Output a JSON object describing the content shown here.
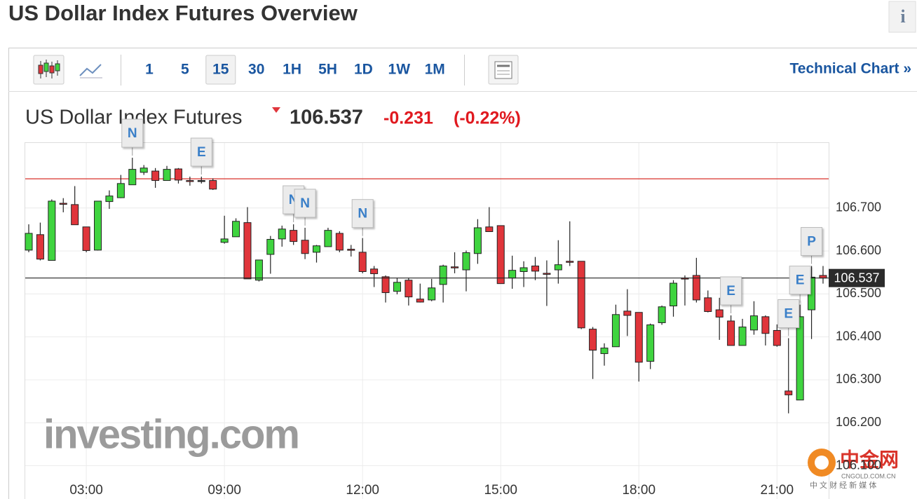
{
  "header": {
    "title": "US Dollar Index Futures Overview",
    "info": "i",
    "toolbar": {
      "intervals": [
        "1",
        "5",
        "15",
        "30",
        "1H",
        "5H",
        "1D",
        "1W",
        "1M"
      ],
      "selected": "15",
      "link": "Technical Chart »"
    },
    "instrument": "US Dollar Index Futures",
    "price": "106.537",
    "change": "-0.231",
    "change_pct": "(-0.22%)"
  },
  "watermarks": {
    "investing": "investing.com",
    "cngold_name": "中金网",
    "cngold_url": "CNGOLD.COM.CN",
    "cngold_tagline": "中 文 财 经 新 媒 体"
  },
  "chart_data": {
    "type": "candlestick",
    "categories": [
      null,
      null,
      null,
      null,
      null,
      "03:00",
      null,
      null,
      null,
      null,
      null,
      null,
      null,
      null,
      null,
      null,
      null,
      "09:00",
      null,
      null,
      null,
      null,
      null,
      null,
      null,
      null,
      null,
      null,
      null,
      "12:00",
      null,
      null,
      null,
      null,
      null,
      null,
      null,
      null,
      null,
      null,
      null,
      "15:00",
      null,
      null,
      null,
      null,
      null,
      null,
      null,
      null,
      null,
      null,
      null,
      "18:00",
      null,
      null,
      null,
      null,
      null,
      null,
      null,
      null,
      null,
      null,
      null,
      "21:00",
      null,
      null,
      null,
      null
    ],
    "open": [
      106.602,
      106.638,
      106.578,
      106.711,
      106.708,
      106.656,
      106.602,
      106.715,
      106.724,
      106.754,
      106.783,
      106.786,
      106.764,
      106.791,
      106.764,
      106.764,
      106.764,
      106.62,
      106.633,
      106.666,
      106.532,
      106.592,
      106.628,
      106.648,
      106.625,
      106.597,
      106.61,
      106.641,
      106.604,
      106.597,
      106.558,
      106.54,
      106.506,
      106.532,
      106.488,
      106.486,
      106.522,
      106.563,
      106.556,
      106.594,
      106.656,
      106.659,
      106.537,
      106.552,
      106.565,
      106.548,
      106.556,
      106.576,
      106.576,
      106.418,
      106.361,
      106.377,
      106.46,
      106.457,
      106.343,
      106.433,
      106.472,
      106.537,
      106.543,
      106.491,
      106.463,
      106.437,
      106.38,
      106.416,
      106.447,
      106.415,
      106.274,
      106.253,
      106.463,
      106.543
    ],
    "high": [
      106.662,
      106.666,
      106.72,
      106.723,
      106.751,
      106.656,
      106.716,
      106.741,
      106.777,
      106.817,
      106.8,
      106.793,
      106.798,
      106.793,
      106.773,
      106.773,
      106.769,
      106.682,
      106.676,
      106.702,
      106.579,
      106.635,
      106.659,
      106.662,
      106.654,
      106.614,
      106.654,
      106.646,
      106.614,
      106.63,
      106.565,
      106.543,
      106.537,
      106.537,
      106.524,
      106.535,
      106.568,
      106.597,
      106.601,
      106.674,
      106.702,
      106.659,
      106.589,
      106.576,
      106.586,
      106.578,
      106.625,
      106.669,
      106.576,
      106.423,
      106.385,
      106.475,
      106.511,
      106.457,
      106.431,
      106.473,
      106.532,
      106.543,
      106.584,
      106.508,
      106.491,
      106.45,
      106.442,
      106.483,
      106.45,
      106.429,
      106.397,
      106.475,
      106.565,
      106.565
    ],
    "low": [
      106.597,
      106.578,
      106.578,
      106.69,
      106.661,
      106.597,
      106.601,
      106.698,
      106.723,
      106.754,
      106.777,
      106.747,
      106.764,
      106.757,
      106.752,
      106.757,
      106.742,
      106.617,
      106.633,
      106.535,
      106.529,
      106.547,
      106.61,
      106.614,
      106.581,
      106.573,
      106.61,
      106.597,
      106.587,
      106.548,
      106.516,
      106.48,
      106.499,
      106.473,
      106.48,
      106.483,
      106.48,
      106.548,
      106.506,
      106.57,
      106.645,
      106.524,
      106.512,
      106.516,
      106.532,
      106.472,
      106.524,
      106.565,
      106.418,
      106.302,
      106.333,
      106.377,
      106.402,
      106.296,
      106.325,
      106.428,
      106.447,
      106.473,
      106.48,
      106.457,
      106.393,
      106.38,
      106.38,
      106.405,
      106.38,
      106.377,
      106.222,
      106.253,
      106.395,
      106.524
    ],
    "close": [
      106.641,
      106.581,
      106.716,
      106.71,
      106.661,
      106.601,
      106.716,
      106.728,
      106.757,
      106.79,
      106.793,
      106.764,
      106.79,
      106.765,
      106.762,
      106.764,
      106.744,
      106.628,
      106.669,
      106.535,
      106.579,
      106.627,
      106.651,
      106.622,
      106.594,
      106.612,
      106.648,
      106.602,
      106.602,
      106.552,
      106.547,
      106.503,
      106.527,
      106.493,
      106.481,
      106.514,
      106.565,
      106.561,
      106.596,
      106.654,
      106.645,
      106.524,
      106.555,
      106.561,
      106.553,
      106.547,
      106.568,
      106.574,
      106.421,
      106.369,
      106.374,
      106.452,
      106.45,
      106.341,
      106.428,
      106.47,
      106.525,
      106.535,
      106.486,
      106.459,
      106.446,
      106.38,
      106.423,
      106.449,
      106.408,
      106.38,
      106.265,
      106.447,
      106.539,
      106.537
    ],
    "up_color": "#3fd43f",
    "down_color": "#e0353b",
    "ylim": [
      106.096,
      106.853
    ],
    "yticks": [
      {
        "value": 106.1,
        "label": "106.100"
      },
      {
        "value": 106.2,
        "label": "106.200"
      },
      {
        "value": 106.3,
        "label": "106.300"
      },
      {
        "value": 106.4,
        "label": "106.400"
      },
      {
        "value": 106.5,
        "label": "106.500"
      },
      {
        "value": 106.6,
        "label": "106.600"
      },
      {
        "value": 106.7,
        "label": "106.700"
      }
    ],
    "grid": true,
    "reference": 106.768,
    "reference_color": "#d9312b",
    "last": 106.537,
    "events": [
      {
        "label": "N",
        "candle": 9
      },
      {
        "label": "E",
        "candle": 15
      },
      {
        "label": "N",
        "candle": 23
      },
      {
        "label": "N",
        "candle": 24
      },
      {
        "label": "N",
        "candle": 29
      },
      {
        "label": "E",
        "candle": 61
      },
      {
        "label": "E",
        "candle": 66
      },
      {
        "label": "E",
        "candle": 67
      },
      {
        "label": "P",
        "candle": 68
      }
    ]
  }
}
